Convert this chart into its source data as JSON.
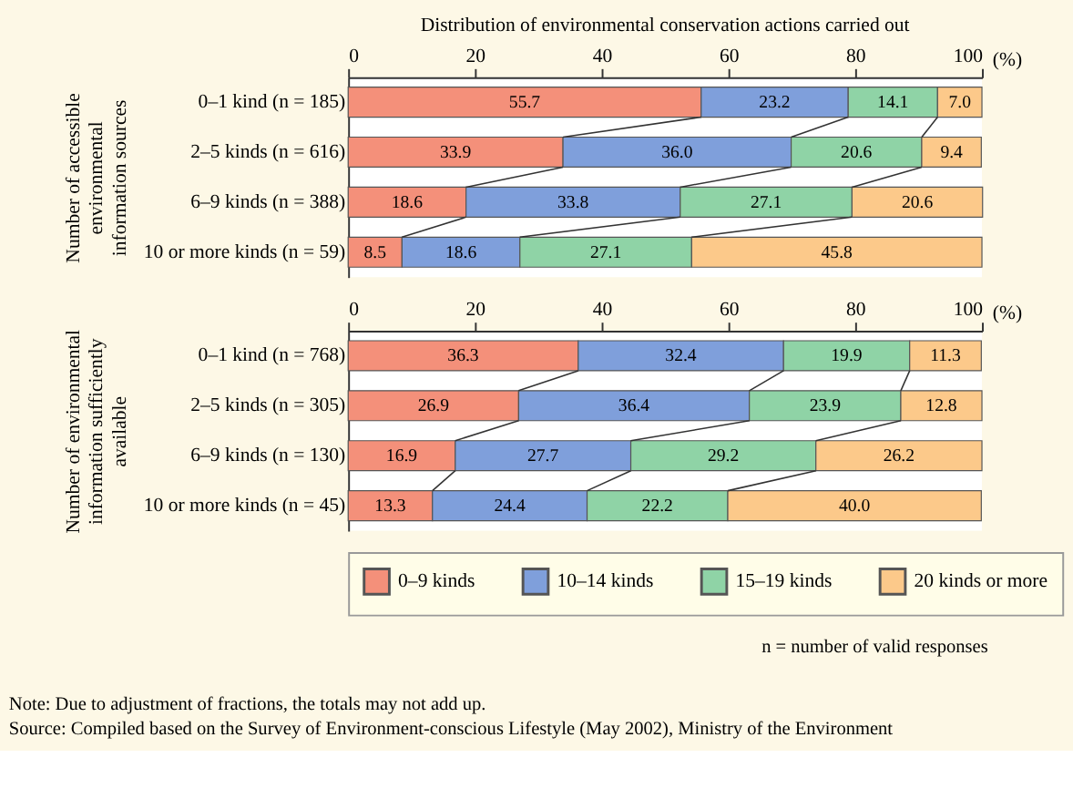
{
  "chart_data": [
    {
      "type": "bar",
      "orientation": "horizontal",
      "stacked": true,
      "title": "Distribution of environmental conservation actions carried out",
      "xlabel": "(%)",
      "ylabel": "Number of accessible environmental information sources",
      "categories": [
        "0–1 kind (n = 185)",
        "2–5 kinds (n = 616)",
        "6–9 kinds (n = 388)",
        "10 or more kinds (n = 59)"
      ],
      "xlim": [
        0,
        100
      ],
      "xticks": [
        0,
        20,
        40,
        60,
        80,
        100
      ],
      "grid": false,
      "legend": "bottom",
      "series": [
        {
          "name": "0–9 kinds",
          "color": "#f4907a",
          "values": [
            55.7,
            33.9,
            18.6,
            8.5
          ],
          "value_labels": [
            "55.7",
            "33.9",
            "18.6",
            "8.5"
          ]
        },
        {
          "name": "10–14 kinds",
          "color": "#7f9fdb",
          "values": [
            23.2,
            36.0,
            33.8,
            18.6
          ],
          "value_labels": [
            "23.2",
            "36.0",
            "33.8",
            "18.6"
          ]
        },
        {
          "name": "15–19 kinds",
          "color": "#8fd3a6",
          "values": [
            14.1,
            20.6,
            27.1,
            27.1
          ],
          "value_labels": [
            "14.1",
            "20.6",
            "27.1",
            "27.1"
          ]
        },
        {
          "name": "20 kinds or more",
          "color": "#fcc98a",
          "values": [
            7.0,
            9.4,
            20.6,
            45.8
          ],
          "value_labels": [
            "7.0",
            "9.4",
            "20.6",
            "45.8"
          ]
        }
      ]
    },
    {
      "type": "bar",
      "orientation": "horizontal",
      "stacked": true,
      "xlabel": "(%)",
      "ylabel": "Number of environmental information sufficiently available",
      "categories": [
        "0–1 kind (n = 768)",
        "2–5 kinds (n = 305)",
        "6–9 kinds (n = 130)",
        "10 or more kinds (n = 45)"
      ],
      "xlim": [
        0,
        100
      ],
      "xticks": [
        0,
        20,
        40,
        60,
        80,
        100
      ],
      "grid": false,
      "legend": "bottom",
      "series": [
        {
          "name": "0–9 kinds",
          "color": "#f4907a",
          "values": [
            36.3,
            26.9,
            16.9,
            13.3
          ],
          "value_labels": [
            "36.3",
            "26.9",
            "16.9",
            "13.3"
          ]
        },
        {
          "name": "10–14 kinds",
          "color": "#7f9fdb",
          "values": [
            32.4,
            36.4,
            27.7,
            24.4
          ],
          "value_labels": [
            "32.4",
            "36.4",
            "27.7",
            "24.4"
          ]
        },
        {
          "name": "15–19 kinds",
          "color": "#8fd3a6",
          "values": [
            19.9,
            23.9,
            29.2,
            22.2
          ],
          "value_labels": [
            "19.9",
            "23.9",
            "29.2",
            "22.2"
          ]
        },
        {
          "name": "20 kinds or more",
          "color": "#fcc98a",
          "values": [
            11.3,
            12.8,
            26.2,
            40.0
          ],
          "value_labels": [
            "11.3",
            "12.8",
            "26.2",
            "40.0"
          ]
        }
      ],
      "annotations": [
        "n = number of valid responses",
        "Note: Due to adjustment of fractions, the totals may not add up.",
        "Source: Compiled based on the Survey of Environment-conscious Lifestyle (May 2002), Ministry of the Environment"
      ]
    }
  ]
}
